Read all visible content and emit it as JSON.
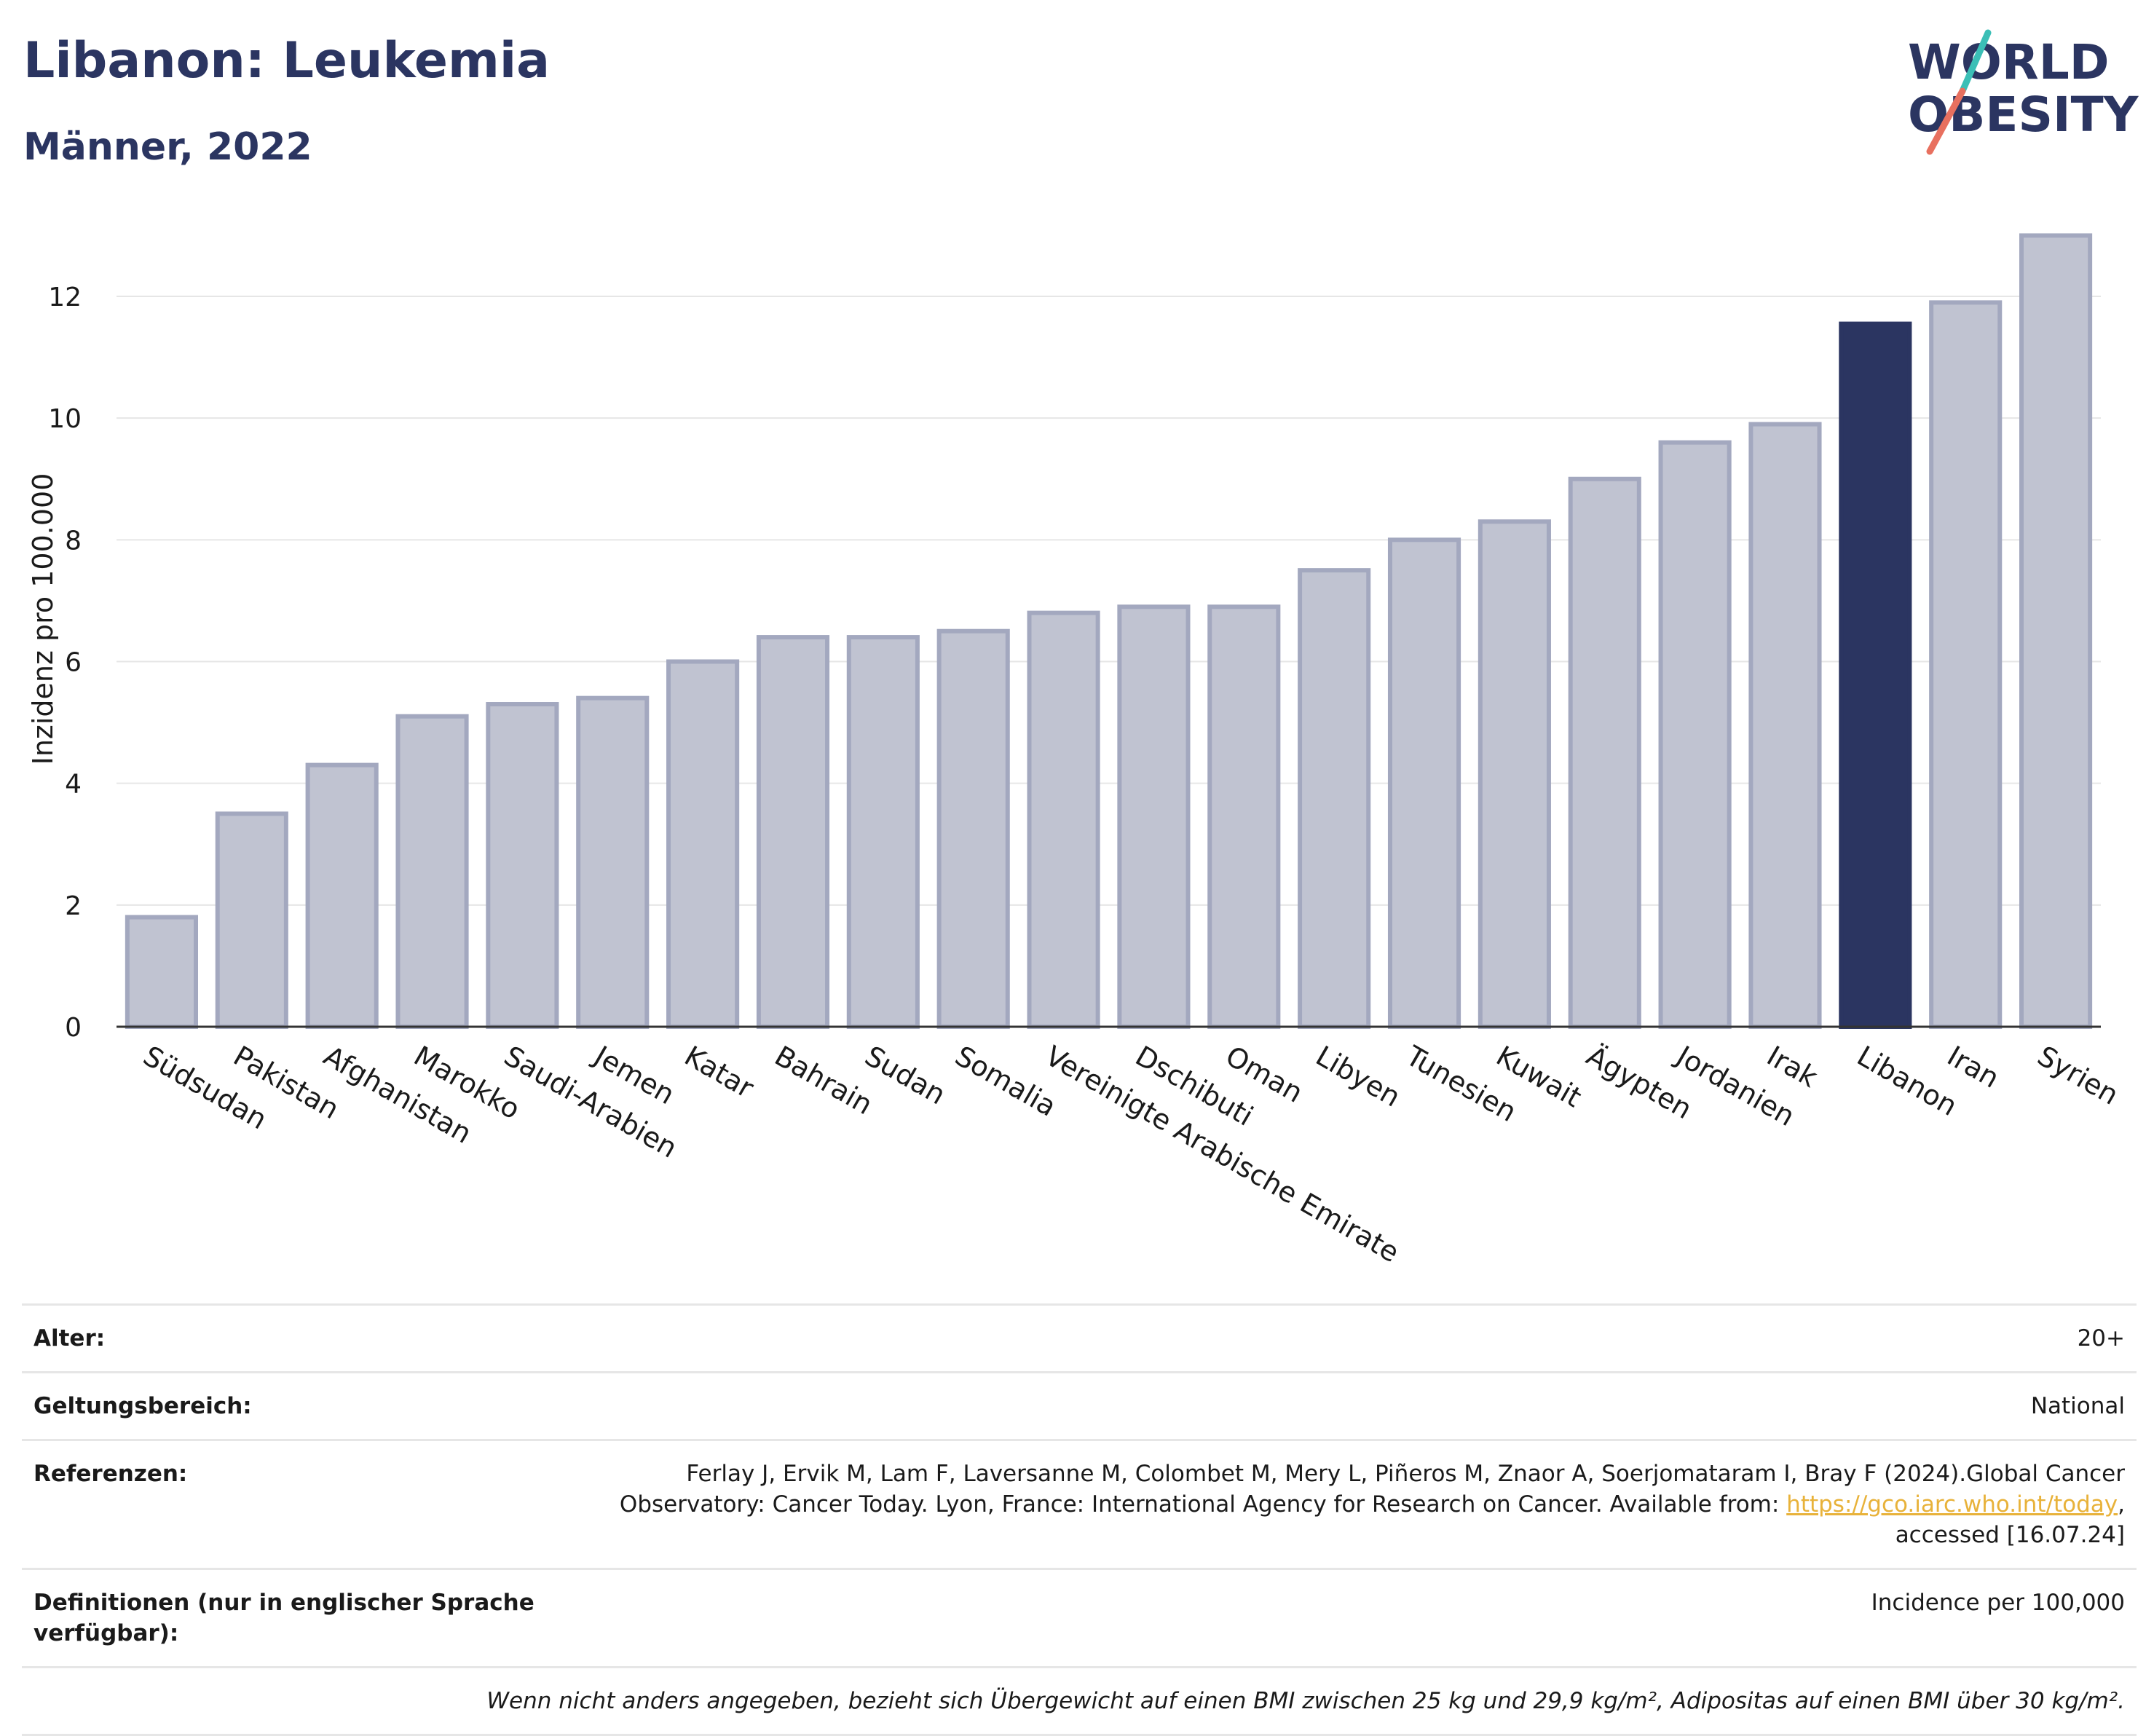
{
  "header": {
    "title": "Libanon: Leukemia",
    "subtitle": "Männer, 2022"
  },
  "logo": {
    "line1": "WORLD",
    "line2": "OBESITY",
    "icon": "world-obesity-logo"
  },
  "colors": {
    "highlight": "#2b3561",
    "bar": "#c0c3d1",
    "bar_stroke": "#a3a8bf",
    "grid": "#e6e6e6",
    "link": "#e8b23a"
  },
  "chart_data": {
    "type": "bar",
    "ylabel": "Inzidenz pro 100.000",
    "ylim": [
      0,
      13.4
    ],
    "yticks": [
      0,
      2,
      4,
      6,
      8,
      10,
      12
    ],
    "grid": true,
    "highlight": "Libanon",
    "categories": [
      "Südsudan",
      "Pakistan",
      "Afghanistan",
      "Marokko",
      "Saudi-Arabien",
      "Jemen",
      "Katar",
      "Bahrain",
      "Sudan",
      "Somalia",
      "Vereinigte Arabische Emirate",
      "Dschibuti",
      "Oman",
      "Libyen",
      "Tunesien",
      "Kuwait",
      "Ägypten",
      "Jordanien",
      "Irak",
      "Libanon",
      "Iran",
      "Syrien"
    ],
    "values": [
      1.8,
      3.5,
      4.3,
      5.1,
      5.3,
      5.4,
      6.0,
      6.4,
      6.4,
      6.5,
      6.8,
      6.9,
      6.9,
      7.5,
      8.0,
      8.3,
      9.0,
      9.6,
      9.9,
      11.55,
      11.9,
      13.0
    ]
  },
  "meta": {
    "rows": [
      {
        "label": "Alter:",
        "value": "20+"
      },
      {
        "label": "Geltungsbereich:",
        "value": "National"
      }
    ],
    "references": {
      "label": "Referenzen:",
      "text_line1": "Ferlay J, Ervik M, Lam F, Laversanne M, Colombet M, Mery L, Piñeros M, Znaor A, Soerjomataram I, Bray F (2024).Global Cancer",
      "text_line2": "Observatory: Cancer Today. Lyon, France: International Agency for Research on Cancer. Available from: ",
      "link": "https://gco.iarc.who.int/today",
      "text_line3": ", accessed [16.07.24]"
    },
    "definitions": {
      "label": "Definitionen (nur in englischer Sprache verfügbar):",
      "value": "Incidence per 100,000"
    },
    "footnote": "Wenn nicht anders angegeben, bezieht sich Übergewicht auf einen BMI zwischen 25 kg und 29,9 kg/m², Adipositas auf einen BMI über 30 kg/m²."
  }
}
